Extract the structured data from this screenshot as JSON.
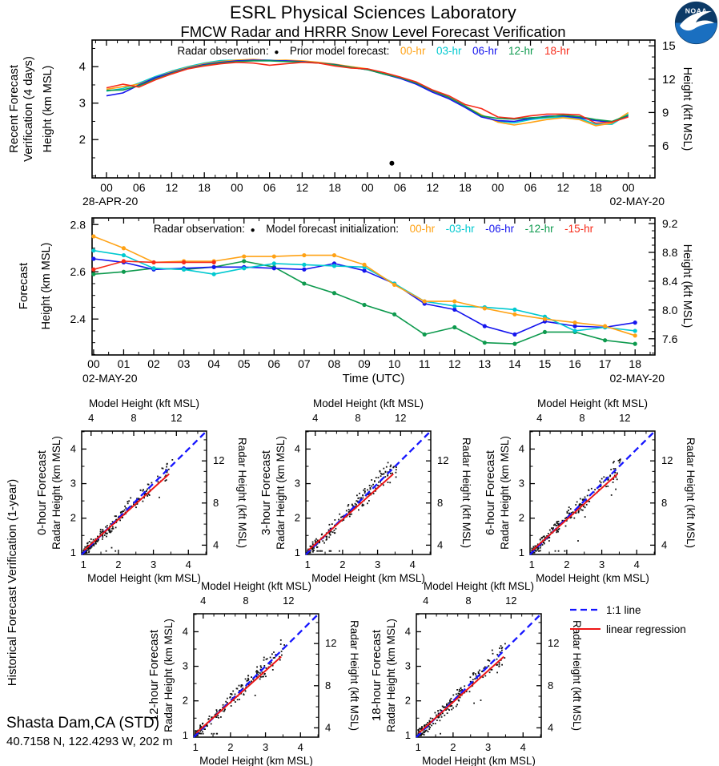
{
  "header": {
    "title": "ESRL Physical Sciences Laboratory",
    "subtitle": "FMCW Radar and HRRR Snow Level Forecast Verification",
    "logo_text": "NOAA"
  },
  "footer": {
    "station": "Shasta Dam,CA (STD)",
    "coords": "40.7158 N, 122.4293 W, 202 m"
  },
  "colors": {
    "hr00": "#ffa215",
    "hr03": "#00c9d0",
    "hr06": "#1515ee",
    "hr12": "#0e9a4e",
    "hr18": "#f72a18",
    "label_blue": "#1a1aff",
    "one_to_one": "#1515ff",
    "regression": "#ee1515",
    "obs": "#000000",
    "logo_navy": "#0c3a67",
    "logo_sea": "#1a6fc0"
  },
  "chart_data": [
    {
      "id": "recent",
      "type": "line",
      "section_label_lines": [
        "Recent Forecast",
        "Verification (4 days)"
      ],
      "ylabel_left": "Height (km MSL)",
      "ylabel_right": "Height (kft MSL)",
      "legend": {
        "obs_label": "Radar observation:",
        "obs_marker": "●",
        "series_title": "Prior model forecast:",
        "items": [
          {
            "label": "00-hr",
            "color_key": "hr00"
          },
          {
            "label": "03-hr",
            "color_key": "hr03"
          },
          {
            "label": "06-hr",
            "color_key": "hr06"
          },
          {
            "label": "12-hr",
            "color_key": "hr12"
          },
          {
            "label": "18-hr",
            "color_key": "hr18"
          }
        ]
      },
      "ylim": [
        0.95,
        4.73
      ],
      "yticks_left": {
        "values": [
          4,
          3,
          2
        ],
        "labels": [
          "4",
          "3",
          "2"
        ]
      },
      "yticks_left_minor": [
        1.0,
        1.5,
        2.5,
        3.5,
        4.5
      ],
      "yticks_right_kft": {
        "values": [
          15,
          12,
          9,
          6
        ],
        "labels": [
          "15",
          "12",
          "9",
          "6"
        ]
      },
      "yticks_right_kft_minor": [
        4,
        5,
        7,
        8,
        10,
        11,
        13,
        14
      ],
      "xlim": [
        -2.65,
        100.9
      ],
      "xtick_hours": [
        0,
        6,
        12,
        18,
        24,
        30,
        36,
        42,
        48,
        54,
        60,
        66,
        72,
        78,
        84,
        90,
        96
      ],
      "xtick_labels": [
        "00",
        "06",
        "12",
        "18",
        "00",
        "06",
        "12",
        "18",
        "00",
        "06",
        "12",
        "18",
        "00",
        "06",
        "12",
        "18",
        "00"
      ],
      "xtick_minor_step": 2,
      "date_left": "28-APR-20",
      "date_right": "02-MAY-20",
      "x_hours": [
        0,
        3,
        6,
        9,
        12,
        15,
        18,
        21,
        24,
        27,
        30,
        33,
        36,
        39,
        42,
        45,
        48,
        51,
        54,
        57,
        60,
        63,
        66,
        69,
        72,
        75,
        78,
        81,
        84,
        87,
        90,
        93,
        96
      ],
      "series": [
        {
          "name": "00-hr",
          "color_key": "hr00",
          "values": [
            3.38,
            3.45,
            3.52,
            3.7,
            3.86,
            3.98,
            4.08,
            4.14,
            4.18,
            4.2,
            4.17,
            4.18,
            4.16,
            4.12,
            4.07,
            4.0,
            3.94,
            3.82,
            3.7,
            3.54,
            3.33,
            3.15,
            2.92,
            2.68,
            2.48,
            2.4,
            2.47,
            2.55,
            2.6,
            2.55,
            2.38,
            2.45,
            2.74
          ]
        },
        {
          "name": "03-hr",
          "color_key": "hr03",
          "values": [
            3.33,
            3.4,
            3.55,
            3.73,
            3.88,
            4.0,
            4.1,
            4.17,
            4.18,
            4.19,
            4.18,
            4.16,
            4.15,
            4.11,
            4.06,
            3.99,
            3.93,
            3.8,
            3.7,
            3.53,
            3.32,
            3.14,
            2.9,
            2.66,
            2.5,
            2.46,
            2.55,
            2.6,
            2.62,
            2.58,
            2.42,
            2.42,
            2.7
          ]
        },
        {
          "name": "06-hr",
          "color_key": "hr06",
          "values": [
            3.2,
            3.28,
            3.5,
            3.7,
            3.84,
            3.96,
            4.06,
            4.12,
            4.16,
            4.18,
            4.17,
            4.16,
            4.14,
            4.1,
            4.06,
            3.98,
            3.92,
            3.8,
            3.68,
            3.52,
            3.3,
            3.12,
            2.88,
            2.62,
            2.52,
            2.5,
            2.58,
            2.64,
            2.65,
            2.6,
            2.52,
            2.48,
            2.65
          ]
        },
        {
          "name": "12-hr",
          "color_key": "hr12",
          "values": [
            3.35,
            3.36,
            3.48,
            3.66,
            3.82,
            3.95,
            4.04,
            4.1,
            4.14,
            4.16,
            4.16,
            4.14,
            4.13,
            4.1,
            4.05,
            3.98,
            3.92,
            3.8,
            3.7,
            3.55,
            3.34,
            3.16,
            2.92,
            2.65,
            2.58,
            2.56,
            2.6,
            2.62,
            2.67,
            2.63,
            2.55,
            2.5,
            2.67
          ]
        },
        {
          "name": "18-hr",
          "color_key": "hr18",
          "values": [
            3.42,
            3.52,
            3.44,
            3.64,
            3.8,
            3.94,
            4.02,
            4.08,
            4.12,
            4.1,
            4.04,
            4.08,
            4.12,
            4.1,
            4.02,
            3.96,
            3.94,
            3.84,
            3.72,
            3.58,
            3.36,
            3.2,
            2.96,
            2.85,
            2.62,
            2.58,
            2.65,
            2.7,
            2.7,
            2.68,
            2.45,
            2.48,
            2.62
          ]
        }
      ],
      "observation_point": {
        "hour": 52.5,
        "km": 1.35
      }
    },
    {
      "id": "forecast",
      "type": "line",
      "section_label_lines": [
        "Forecast"
      ],
      "ylabel_left": "Height (km MSL)",
      "ylabel_right": "Height (kft MSL)",
      "xlabel": "Time (UTC)",
      "legend": {
        "obs_label": "Radar observation:",
        "obs_marker": "●",
        "series_title": "Model forecast initialization:",
        "items": [
          {
            "label": "00-hr",
            "color_key": "hr00"
          },
          {
            "label": "-03-hr",
            "color_key": "hr03"
          },
          {
            "label": "-06-hr",
            "color_key": "hr06"
          },
          {
            "label": "-12-hr",
            "color_key": "hr12"
          },
          {
            "label": "-15-hr",
            "color_key": "hr18"
          }
        ]
      },
      "ylim": [
        2.248,
        2.828
      ],
      "yticks_left": {
        "values": [
          2.8,
          2.6,
          2.4
        ],
        "labels": [
          "2.8",
          "2.6",
          "2.4"
        ]
      },
      "yticks_left_minor": [
        2.25,
        2.3,
        2.35,
        2.45,
        2.5,
        2.55,
        2.65,
        2.7,
        2.75
      ],
      "yticks_right_kft": {
        "values": [
          9.2,
          8.8,
          8.4,
          8.0,
          7.6
        ],
        "labels": [
          "9.2",
          "8.8",
          "8.4",
          "8.0",
          "7.6"
        ]
      },
      "yticks_right_kft_minor": [
        7.4,
        7.5,
        7.7,
        7.8,
        7.9,
        8.1,
        8.2,
        8.3,
        8.5,
        8.6,
        8.7,
        8.9,
        9.0,
        9.1
      ],
      "xlim": [
        -0.05,
        18.66
      ],
      "xtick_hours": [
        0,
        1,
        2,
        3,
        4,
        5,
        6,
        7,
        8,
        9,
        10,
        11,
        12,
        13,
        14,
        15,
        16,
        17,
        18
      ],
      "xtick_labels": [
        "00",
        "01",
        "02",
        "03",
        "04",
        "05",
        "06",
        "07",
        "08",
        "09",
        "10",
        "11",
        "12",
        "13",
        "14",
        "15",
        "16",
        "17",
        "18"
      ],
      "xtick_minor_step": 0.5,
      "date_left": "02-MAY-20",
      "date_right": "02-MAY-20",
      "x_hours": [
        0,
        1,
        2,
        3,
        4,
        5,
        6,
        7,
        8,
        9,
        10,
        11,
        12,
        13,
        14,
        15,
        16,
        17,
        18
      ],
      "markers": true,
      "series": [
        {
          "name": "00-hr",
          "color_key": "hr00",
          "values": [
            2.75,
            2.7,
            2.64,
            2.645,
            2.645,
            2.665,
            2.665,
            2.67,
            2.67,
            2.63,
            2.545,
            2.475,
            2.475,
            2.445,
            2.42,
            2.4,
            2.385,
            2.37,
            2.33
          ]
        },
        {
          "name": "-03-hr",
          "color_key": "hr03",
          "values": [
            2.69,
            2.67,
            2.615,
            2.61,
            2.59,
            2.615,
            2.635,
            2.63,
            2.625,
            2.62,
            2.55,
            2.475,
            2.455,
            2.45,
            2.44,
            2.41,
            2.35,
            2.365,
            2.35
          ]
        },
        {
          "name": "-06-hr",
          "color_key": "hr06",
          "values": [
            2.655,
            2.64,
            2.61,
            2.615,
            2.62,
            2.62,
            2.615,
            2.61,
            2.635,
            2.605,
            2.55,
            2.465,
            2.44,
            2.37,
            2.335,
            2.39,
            2.37,
            2.365,
            2.385
          ]
        },
        {
          "name": "-12-hr",
          "color_key": "hr12",
          "values": [
            2.59,
            2.6,
            2.615,
            2.61,
            2.62,
            2.645,
            2.62,
            2.55,
            2.51,
            2.46,
            2.42,
            2.335,
            2.365,
            2.3,
            2.295,
            2.345,
            2.345,
            2.31,
            2.295
          ]
        },
        {
          "name": "-15-hr",
          "color_key": "hr18",
          "values": [
            2.61,
            2.645,
            2.64,
            2.64,
            2.64,
            null,
            null,
            null,
            null,
            null,
            null,
            null,
            null,
            null,
            null,
            null,
            null,
            null,
            null
          ]
        }
      ]
    },
    {
      "id": "historical",
      "type": "scatter",
      "section_label_lines": [
        "Historical Forecast Verification (1-year)"
      ],
      "axis": {
        "top_label": "Model Height (kft MSL)",
        "bottom_label": "Model Height (km MSL)",
        "left_label": "Radar Height (km MSL)",
        "right_label": "Radar Height (kft MSL)",
        "km_ticks": {
          "values": [
            1,
            2,
            3,
            4
          ],
          "labels": [
            "1",
            "2",
            "3",
            "4"
          ]
        },
        "km_ticks_minor": [
          1.5,
          2.5,
          3.5,
          4.5
        ],
        "kft_ticks": {
          "values": [
            4,
            8,
            12
          ],
          "labels": [
            "4",
            "8",
            "12"
          ]
        },
        "kft_ticks_minor": [
          5,
          6,
          7,
          9,
          10,
          11,
          13,
          14
        ],
        "lim_km": [
          0.95,
          4.52
        ]
      },
      "panels": [
        {
          "label": "0-hour Forecast",
          "seed": 3,
          "n_points": 215
        },
        {
          "label": "3-hour Forecast",
          "seed": 7,
          "n_points": 215
        },
        {
          "label": "6-hour Forecast",
          "seed": 11,
          "n_points": 215
        },
        {
          "label": "12-hour Forecast",
          "seed": 13,
          "n_points": 215
        },
        {
          "label": "18-hour Forecast",
          "seed": 17,
          "n_points": 215
        }
      ],
      "one_to_one": {
        "label": "1:1 line",
        "from": [
          0.95,
          0.95
        ],
        "to": [
          4.52,
          4.52
        ]
      },
      "regression": {
        "label": "linear regression",
        "from": [
          1.02,
          1.07
        ],
        "to": [
          3.45,
          3.28
        ]
      }
    }
  ]
}
